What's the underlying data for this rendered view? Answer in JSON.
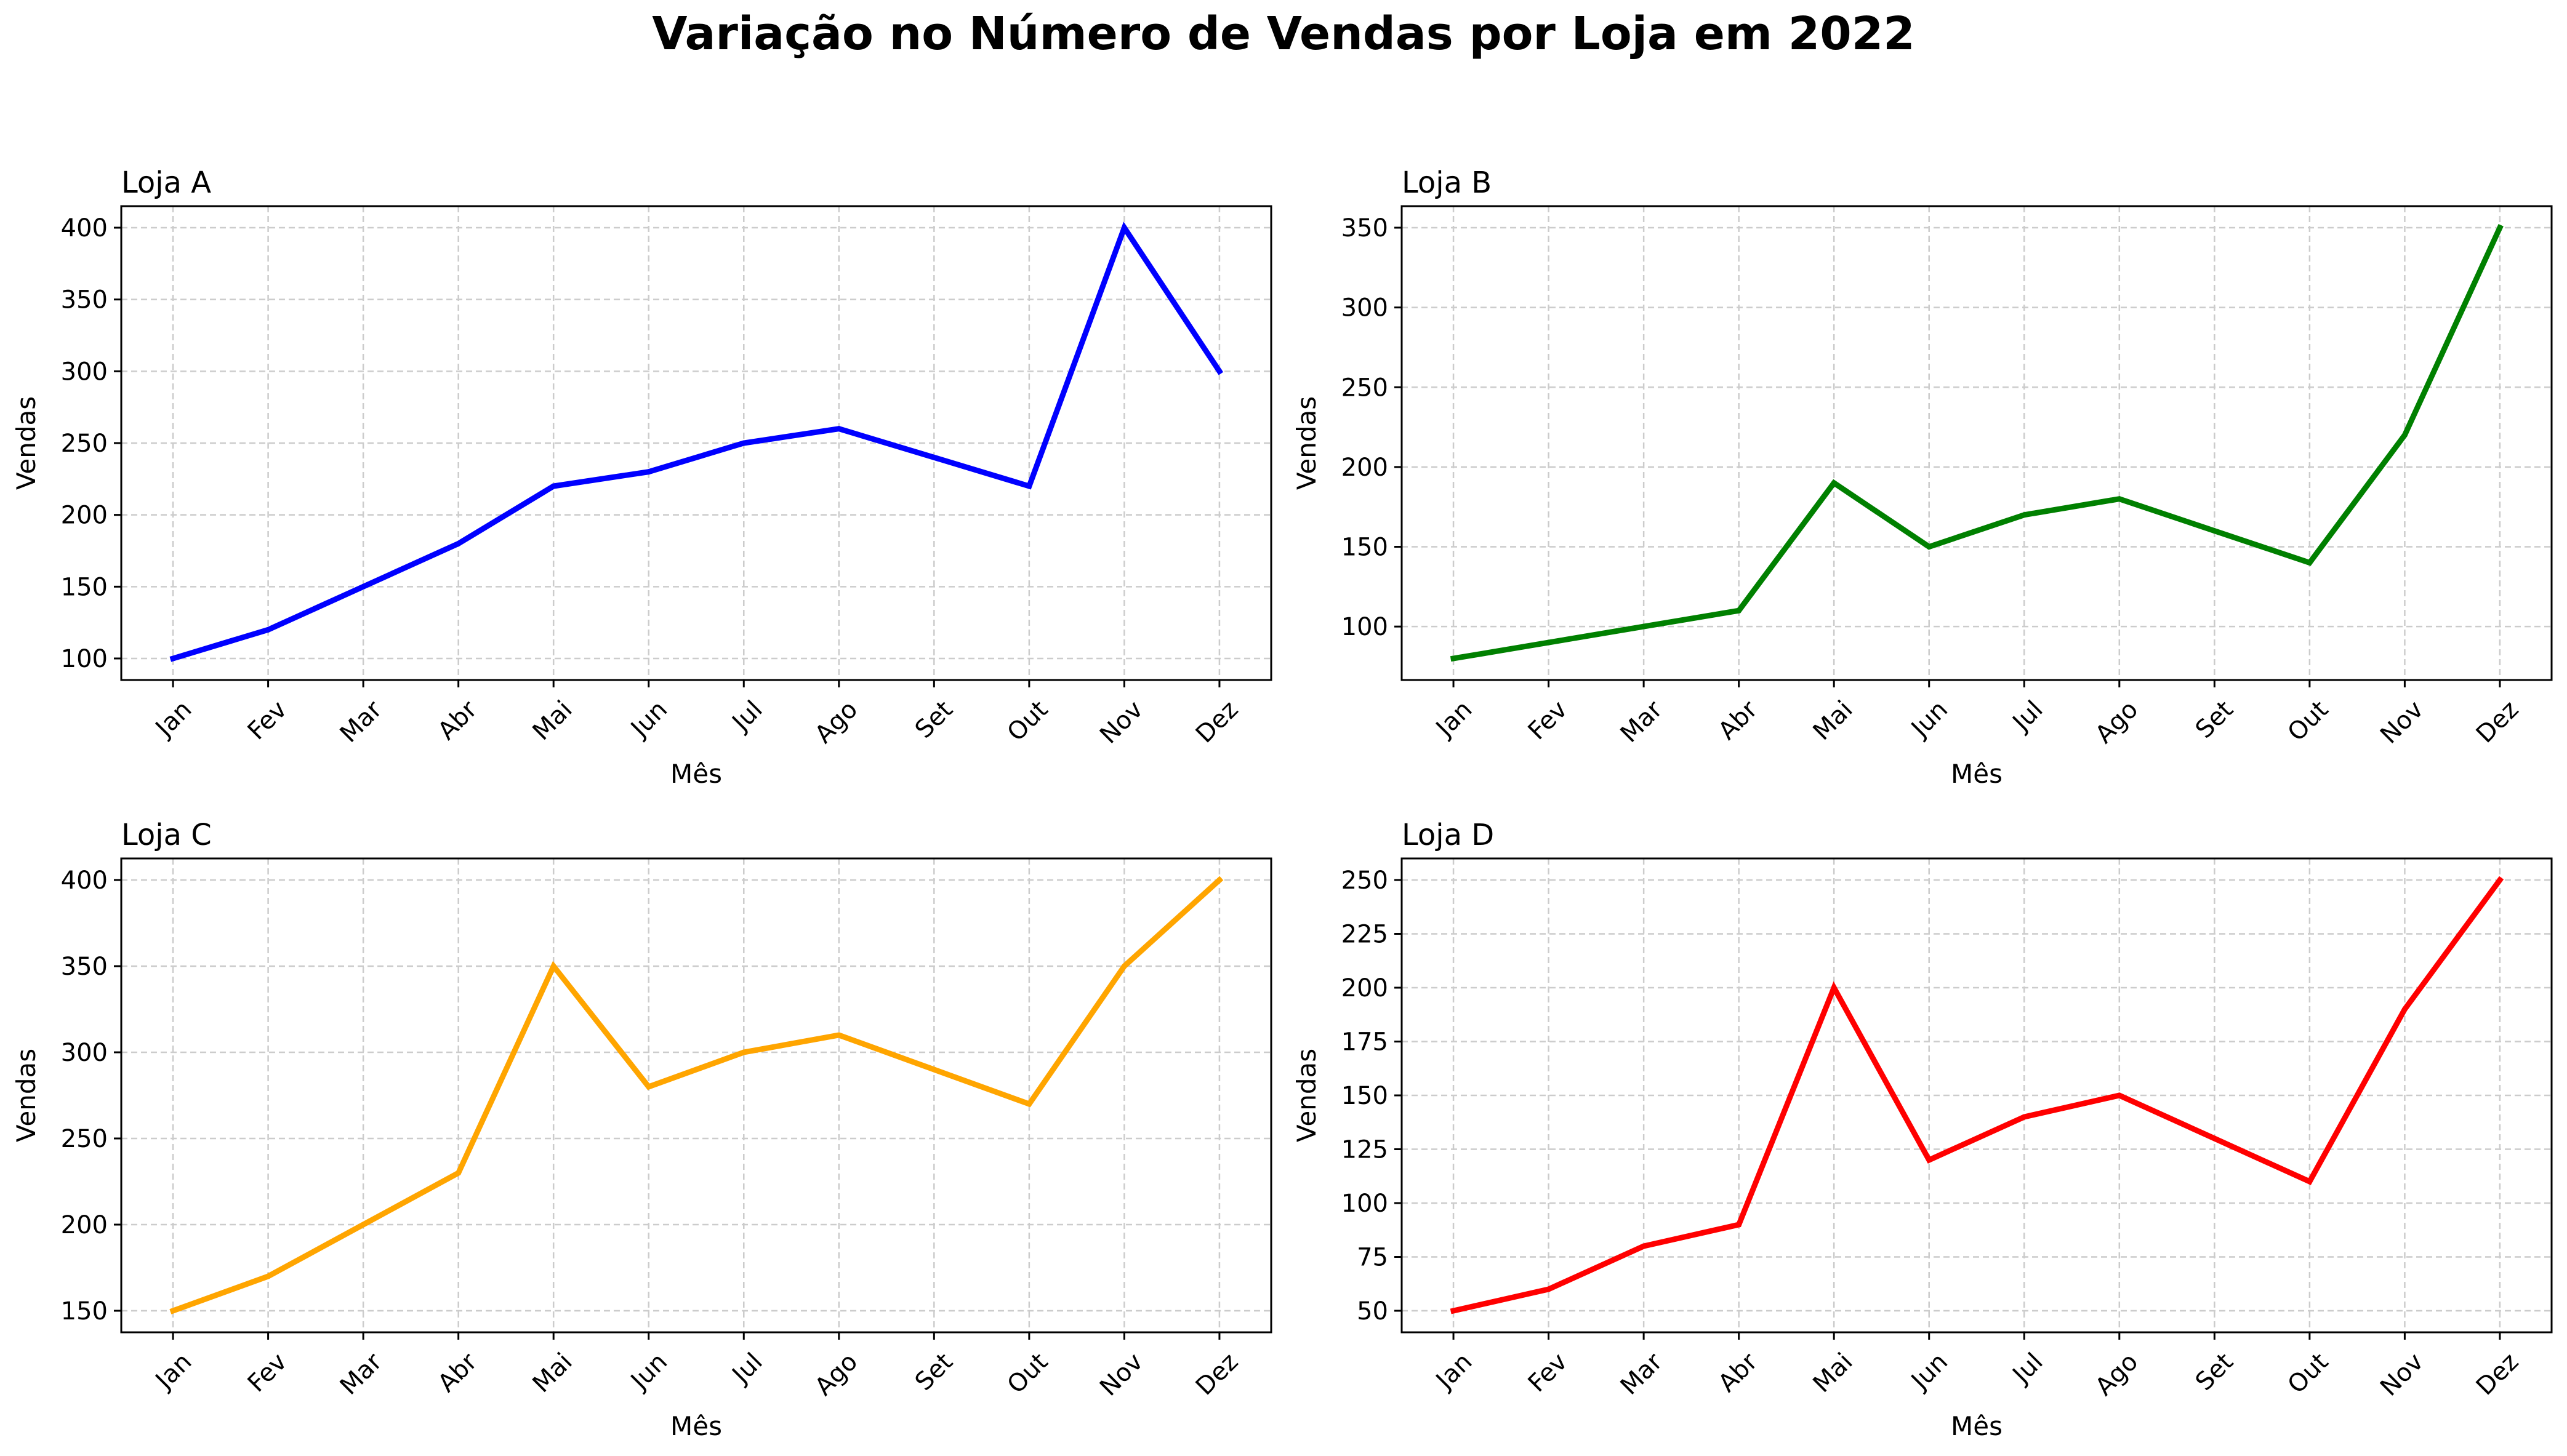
{
  "figure_title": "Variação no Número de Vendas por Loja em 2022",
  "chart_data": [
    {
      "type": "line",
      "title": "Loja A",
      "xlabel": "Mês",
      "ylabel": "Vendas",
      "categories": [
        "Jan",
        "Fev",
        "Mar",
        "Abr",
        "Mai",
        "Jun",
        "Jul",
        "Ago",
        "Set",
        "Out",
        "Nov",
        "Dez"
      ],
      "values": [
        100,
        120,
        150,
        180,
        220,
        230,
        250,
        260,
        240,
        220,
        400,
        300
      ],
      "color": "#0000ff",
      "ylim": [
        85,
        415
      ],
      "yticks": [
        100,
        150,
        200,
        250,
        300,
        350,
        400
      ],
      "grid": true
    },
    {
      "type": "line",
      "title": "Loja B",
      "xlabel": "Mês",
      "ylabel": "Vendas",
      "categories": [
        "Jan",
        "Fev",
        "Mar",
        "Abr",
        "Mai",
        "Jun",
        "Jul",
        "Ago",
        "Set",
        "Out",
        "Nov",
        "Dez"
      ],
      "values": [
        80,
        90,
        100,
        110,
        190,
        150,
        170,
        180,
        160,
        140,
        220,
        350
      ],
      "color": "#008000",
      "ylim": [
        66.5,
        363.5
      ],
      "yticks": [
        100,
        150,
        200,
        250,
        300,
        350
      ],
      "grid": true
    },
    {
      "type": "line",
      "title": "Loja C",
      "xlabel": "Mês",
      "ylabel": "Vendas",
      "categories": [
        "Jan",
        "Fev",
        "Mar",
        "Abr",
        "Mai",
        "Jun",
        "Jul",
        "Ago",
        "Set",
        "Out",
        "Nov",
        "Dez"
      ],
      "values": [
        150,
        170,
        200,
        230,
        350,
        280,
        300,
        310,
        290,
        270,
        350,
        400
      ],
      "color": "#ffa500",
      "ylim": [
        137.5,
        412.5
      ],
      "yticks": [
        150,
        200,
        250,
        300,
        350,
        400
      ],
      "grid": true
    },
    {
      "type": "line",
      "title": "Loja D",
      "xlabel": "Mês",
      "ylabel": "Vendas",
      "categories": [
        "Jan",
        "Fev",
        "Mar",
        "Abr",
        "Mai",
        "Jun",
        "Jul",
        "Ago",
        "Set",
        "Out",
        "Nov",
        "Dez"
      ],
      "values": [
        50,
        60,
        80,
        90,
        200,
        120,
        140,
        150,
        130,
        110,
        190,
        250
      ],
      "color": "#ff0000",
      "ylim": [
        40,
        260
      ],
      "yticks": [
        50,
        75,
        100,
        125,
        150,
        175,
        200,
        225,
        250
      ],
      "grid": true
    }
  ]
}
